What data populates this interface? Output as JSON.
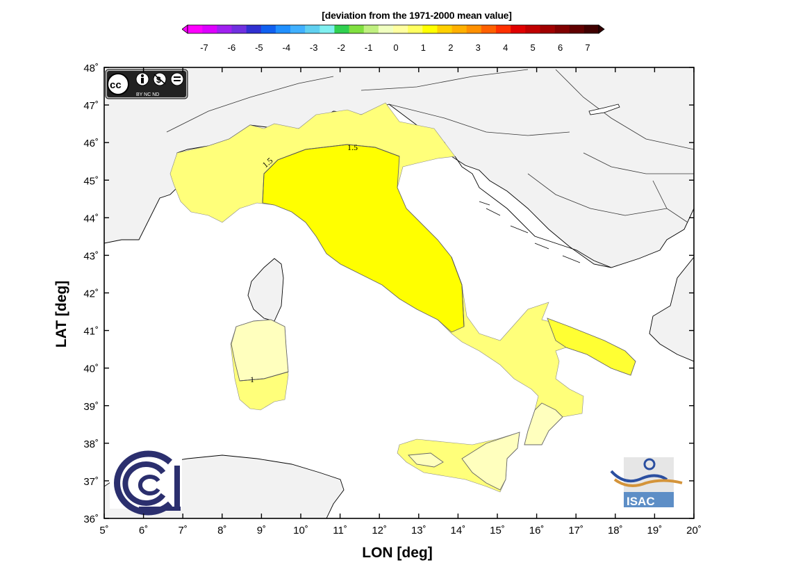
{
  "colorbar": {
    "title": "[deviation from the 1971-2000 mean value]",
    "tick_labels": [
      "-7",
      "-6",
      "-5",
      "-4",
      "-3",
      "-2",
      "-1",
      "0",
      "1",
      "2",
      "3",
      "4",
      "5",
      "6",
      "7"
    ],
    "colors": [
      "#ff00ff",
      "#dd00ff",
      "#a020f0",
      "#7030e0",
      "#3030d0",
      "#1060f0",
      "#2090ff",
      "#40b0ff",
      "#60d0f0",
      "#80f0f0",
      "#30d050",
      "#80e040",
      "#c0f080",
      "#f0ffc0",
      "#ffffa0",
      "#ffff60",
      "#ffff00",
      "#ffd000",
      "#ffb000",
      "#ff9000",
      "#ff6000",
      "#ff3000",
      "#e00000",
      "#c00000",
      "#a00000",
      "#800000",
      "#600000",
      "#400000"
    ]
  },
  "axes": {
    "x_label": "LON [deg]",
    "y_label": "LAT [deg]",
    "x_ticks": [
      "5˚",
      "6˚",
      "7˚",
      "8˚",
      "9˚",
      "10˚",
      "11˚",
      "12˚",
      "13˚",
      "14˚",
      "15˚",
      "16˚",
      "17˚",
      "18˚",
      "19˚",
      "20˚"
    ],
    "y_ticks": [
      "36˚",
      "37˚",
      "38˚",
      "39˚",
      "40˚",
      "41˚",
      "42˚",
      "43˚",
      "44˚",
      "45˚",
      "46˚",
      "47˚",
      "48˚"
    ],
    "lon_range": [
      5,
      20
    ],
    "lat_range": [
      36,
      48
    ]
  },
  "contours": {
    "labels": [
      "1.5",
      "1.5",
      "1"
    ]
  },
  "license_badge": {
    "line1": "cc",
    "line2": "BY   NC   ND"
  },
  "logos": {
    "isac_text": "ISAC"
  },
  "colors": {
    "land_outside": "#f2f2f2",
    "sea": "#ffffff",
    "italy_1_to_1_5": "#ffff7a",
    "italy_1_5_to_2": "#ffff00",
    "italy_0_5_to_1": "#ffffbe",
    "cnr_blue": "#2b2f6e",
    "isac_blue": "#5d8ec6"
  }
}
